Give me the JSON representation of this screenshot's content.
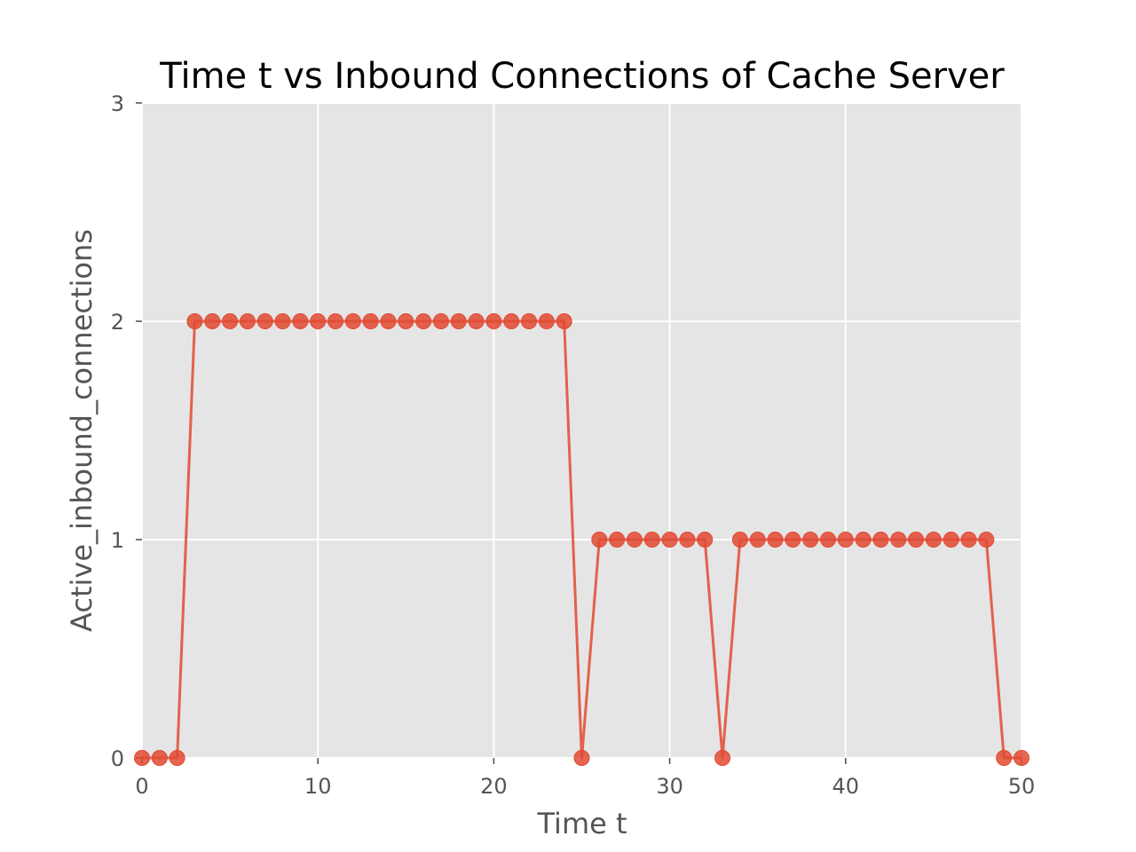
{
  "chart_data": {
    "type": "line",
    "title": "Time t vs Inbound Connections of Cache Server",
    "xlabel": "Time t",
    "ylabel": "Active_inbound_connections",
    "xlim": [
      0,
      50
    ],
    "ylim": [
      0,
      3
    ],
    "xticks": [
      0,
      10,
      20,
      30,
      40,
      50
    ],
    "yticks": [
      0,
      1,
      2,
      3
    ],
    "grid": true,
    "series": [
      {
        "color": "#E24A33",
        "marker": "circle",
        "x": [
          0,
          1,
          2,
          3,
          4,
          5,
          6,
          7,
          8,
          9,
          10,
          11,
          12,
          13,
          14,
          15,
          16,
          17,
          18,
          19,
          20,
          21,
          22,
          23,
          24,
          25,
          26,
          27,
          28,
          29,
          30,
          31,
          32,
          33,
          34,
          35,
          36,
          37,
          38,
          39,
          40,
          41,
          42,
          43,
          44,
          45,
          46,
          47,
          48,
          49,
          50
        ],
        "values": [
          0,
          0,
          0,
          2,
          2,
          2,
          2,
          2,
          2,
          2,
          2,
          2,
          2,
          2,
          2,
          2,
          2,
          2,
          2,
          2,
          2,
          2,
          2,
          2,
          2,
          0,
          1,
          1,
          1,
          1,
          1,
          1,
          1,
          0,
          1,
          1,
          1,
          1,
          1,
          1,
          1,
          1,
          1,
          1,
          1,
          1,
          1,
          1,
          1,
          0,
          0
        ]
      }
    ]
  },
  "colors": {
    "plot_background": "#E5E5E5",
    "grid": "#FFFFFF",
    "tick_text": "#555555",
    "series": "#E24A33"
  }
}
